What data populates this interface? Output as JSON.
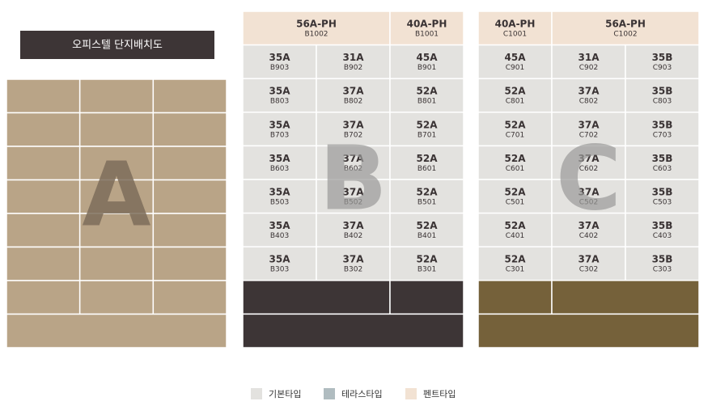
{
  "header": {
    "title": "오피스텔 단지배치도"
  },
  "blocks": [
    {
      "label": "A"
    },
    {
      "label": "B",
      "penthouse": [
        {
          "type": "56A-PH",
          "unit": "B1002"
        },
        {
          "type": "40A-PH",
          "unit": "B1001"
        }
      ],
      "units": [
        [
          {
            "type": "35A",
            "unit": "B903"
          },
          {
            "type": "31A",
            "unit": "B902"
          },
          {
            "type": "45A",
            "unit": "B901"
          }
        ],
        [
          {
            "type": "35A",
            "unit": "B803"
          },
          {
            "type": "37A",
            "unit": "B802"
          },
          {
            "type": "52A",
            "unit": "B801"
          }
        ],
        [
          {
            "type": "35A",
            "unit": "B703"
          },
          {
            "type": "37A",
            "unit": "B702"
          },
          {
            "type": "52A",
            "unit": "B701"
          }
        ],
        [
          {
            "type": "35A",
            "unit": "B603"
          },
          {
            "type": "37A",
            "unit": "B602"
          },
          {
            "type": "52A",
            "unit": "B601"
          }
        ],
        [
          {
            "type": "35A",
            "unit": "B503"
          },
          {
            "type": "37A",
            "unit": "B502"
          },
          {
            "type": "52A",
            "unit": "B501"
          }
        ],
        [
          {
            "type": "35A",
            "unit": "B403"
          },
          {
            "type": "37A",
            "unit": "B402"
          },
          {
            "type": "52A",
            "unit": "B401"
          }
        ],
        [
          {
            "type": "35A",
            "unit": "B303"
          },
          {
            "type": "37A",
            "unit": "B302"
          },
          {
            "type": "52A",
            "unit": "B301"
          }
        ]
      ]
    },
    {
      "label": "C",
      "penthouse": [
        {
          "type": "40A-PH",
          "unit": "C1001"
        },
        {
          "type": "56A-PH",
          "unit": "C1002"
        }
      ],
      "units": [
        [
          {
            "type": "45A",
            "unit": "C901"
          },
          {
            "type": "31A",
            "unit": "C902"
          },
          {
            "type": "35B",
            "unit": "C903"
          }
        ],
        [
          {
            "type": "52A",
            "unit": "C801"
          },
          {
            "type": "37A",
            "unit": "C802"
          },
          {
            "type": "35B",
            "unit": "C803"
          }
        ],
        [
          {
            "type": "52A",
            "unit": "C701"
          },
          {
            "type": "37A",
            "unit": "C702"
          },
          {
            "type": "35B",
            "unit": "C703"
          }
        ],
        [
          {
            "type": "52A",
            "unit": "C601"
          },
          {
            "type": "37A",
            "unit": "C602"
          },
          {
            "type": "35B",
            "unit": "C603"
          }
        ],
        [
          {
            "type": "52A",
            "unit": "C501"
          },
          {
            "type": "37A",
            "unit": "C502"
          },
          {
            "type": "35B",
            "unit": "C503"
          }
        ],
        [
          {
            "type": "52A",
            "unit": "C401"
          },
          {
            "type": "37A",
            "unit": "C402"
          },
          {
            "type": "35B",
            "unit": "C403"
          }
        ],
        [
          {
            "type": "52A",
            "unit": "C301"
          },
          {
            "type": "37A",
            "unit": "C302"
          },
          {
            "type": "35B",
            "unit": "C303"
          }
        ]
      ]
    }
  ],
  "legend": [
    {
      "label": "기본타입"
    },
    {
      "label": "테라스타입"
    },
    {
      "label": "펜트타입"
    }
  ]
}
